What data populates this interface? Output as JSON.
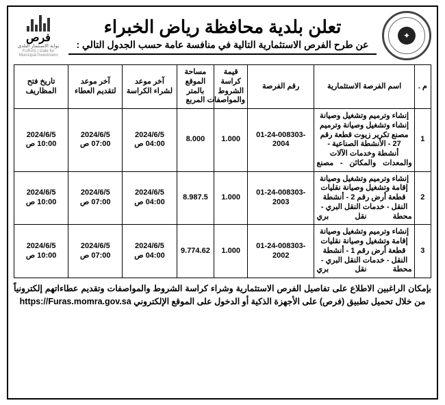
{
  "header": {
    "main_title": "تعلن بلدية محافظة رياض الخبراء",
    "sub_title": "عن طرح الفرص الاستثمارية التالية في منافسة عامة حسب الجدول التالي :",
    "logo_text": "فرص",
    "logo_sub": "بوابة الاستثمار البلدي",
    "logo_sub_en": "FURAS | Gate for Municipal Investment"
  },
  "table": {
    "columns": [
      "م .",
      "اسم الفرصة الاستثمارية",
      "رقم الفرصة",
      "قيمة كراسة الشروط والمواصفات",
      "مساحة الموقع بالمتر المربع",
      "آخر موعد لشراء الكراسة",
      "آخر موعد لتقديم العطاء",
      "تاريخ فتح المظاريف"
    ],
    "rows": [
      {
        "idx": "1",
        "name": "إنشاء وترميم وتشغيل وصيانة إنشاء وتشغيل وصيانة وترميم مصنع تكرير زيوت قطعة رقم 27 - الأنشطة الصناعية - أنشطة وخدمات الآلات والمعدات والمكائن - مصنع",
        "num": "01-24-008303-2004",
        "price": "1.000",
        "area": "8.000",
        "d1_date": "2024/6/5",
        "d1_time": "04:00 ص",
        "d2_date": "2024/6/5",
        "d2_time": "07:00 ص",
        "d3_date": "2024/6/5",
        "d3_time": "10:00 ص"
      },
      {
        "idx": "2",
        "name": "إنشاء وترميم وتشغيل وصيانة إقامة وتشغيل وصيانة نقليات قطعة أرض رقم 2 - أنشطة النقل - خدمات النقل البري - محطة نقل بري",
        "num": "01-24-008303-2003",
        "price": "1.000",
        "area": "8.987.5",
        "d1_date": "2024/6/5",
        "d1_time": "04:00 ص",
        "d2_date": "2024/6/5",
        "d2_time": "07:00 ص",
        "d3_date": "2024/6/5",
        "d3_time": "10:00 ص"
      },
      {
        "idx": "3",
        "name": "إنشاء وترميم وتشغيل وصيانة إقامة وتشغيل وصيانة نقليات قطعة أرض رقم 1 - أنشطة النقل - خدمات النقل البري - محطة نقل بري",
        "num": "01-24-008303-2002",
        "price": "1.000",
        "area": "9.774.62",
        "d1_date": "2024/6/5",
        "d1_time": "04:00 ص",
        "d2_date": "2024/6/5",
        "d2_time": "07:00 ص",
        "d3_date": "2024/6/5",
        "d3_time": "10:00 ص"
      }
    ]
  },
  "footer": {
    "line1": "بإمكان الراغبين الاطلاع على تفاصيل الفرص الاستثمارية وشراء كراسة الشروط والمواصفات وتقديم عطاءاتهم إلكترونياً من",
    "line2_pre": "خلال تحميل تطبيق (فرص) على الأجهزة الذكية أو الدخول على الموقع الإلكتروني ",
    "url": "https://Furas.momra.gov.sa"
  }
}
